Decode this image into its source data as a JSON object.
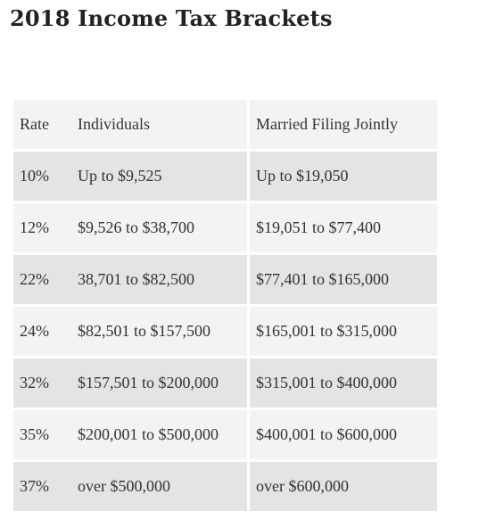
{
  "page": {
    "title": "2018 Income Tax Brackets"
  },
  "table": {
    "headers": {
      "rate": "Rate",
      "individuals": "Individuals",
      "married": "Married Filing Jointly"
    },
    "rows": [
      {
        "rate": "10%",
        "individuals": "Up to $9,525",
        "married": "Up to $19,050"
      },
      {
        "rate": "12%",
        "individuals": "$9,526 to $38,700",
        "married": "$19,051 to $77,400"
      },
      {
        "rate": "22%",
        "individuals": "38,701 to $82,500",
        "married": "$77,401 to $165,000"
      },
      {
        "rate": "24%",
        "individuals": "$82,501 to $157,500",
        "married": "$165,001 to $315,000"
      },
      {
        "rate": "32%",
        "individuals": "$157,501 to $200,000",
        "married": "$315,001 to $400,000"
      },
      {
        "rate": "35%",
        "individuals": "$200,001 to $500,000",
        "married": "$400,001 to $600,000"
      },
      {
        "rate": "37%",
        "individuals": "over $500,000",
        "married": "over $600,000"
      }
    ]
  }
}
